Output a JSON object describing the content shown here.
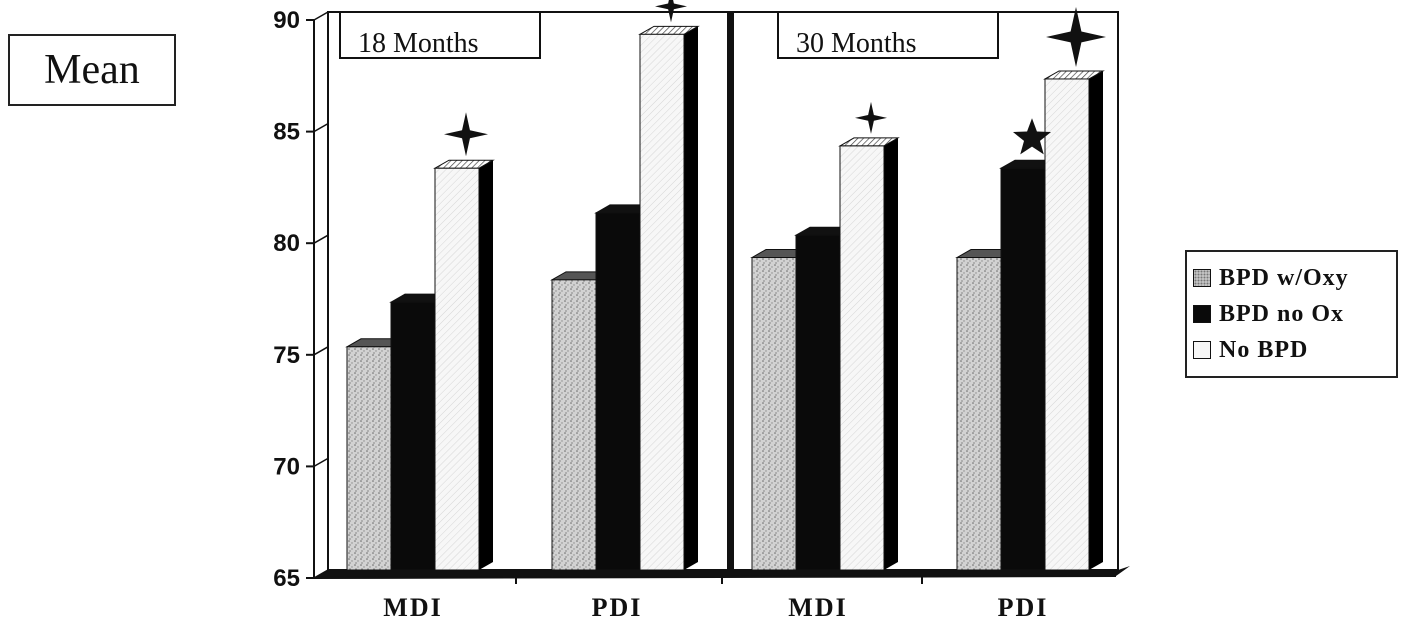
{
  "y_axis_box_label": "Mean",
  "chart_data": {
    "type": "bar",
    "ylim": [
      65,
      90
    ],
    "yticks": [
      65,
      70,
      75,
      80,
      85,
      90
    ],
    "categories": [
      "MDI",
      "PDI",
      "MDI",
      "PDI"
    ],
    "panels": [
      {
        "label": "18 Months",
        "categories": [
          "MDI",
          "PDI"
        ]
      },
      {
        "label": "30 Months",
        "categories": [
          "MDI",
          "PDI"
        ]
      }
    ],
    "series": [
      {
        "name": "BPD w/Oxy",
        "values": [
          75,
          78,
          79,
          79
        ]
      },
      {
        "name": "BPD no Ox",
        "values": [
          77,
          81,
          80,
          83
        ]
      },
      {
        "name": "No BPD",
        "values": [
          83,
          89,
          84,
          87
        ]
      }
    ],
    "legend_position": "right",
    "annotations": [
      {
        "symbol": "four-point-star",
        "category_index": 0,
        "series": "No BPD"
      },
      {
        "symbol": "four-point-star",
        "category_index": 1,
        "series": "No BPD"
      },
      {
        "symbol": "four-point-star",
        "category_index": 2,
        "series": "No BPD"
      },
      {
        "symbol": "five-point-star",
        "category_index": 3,
        "series": "BPD no Ox"
      },
      {
        "symbol": "four-point-star",
        "category_index": 3,
        "series": "No BPD"
      }
    ],
    "colors": {
      "BPD w/Oxy": "#c8c8c8",
      "BPD no Ox": "#0a0a0a",
      "No BPD": "#f4f4f4"
    }
  }
}
